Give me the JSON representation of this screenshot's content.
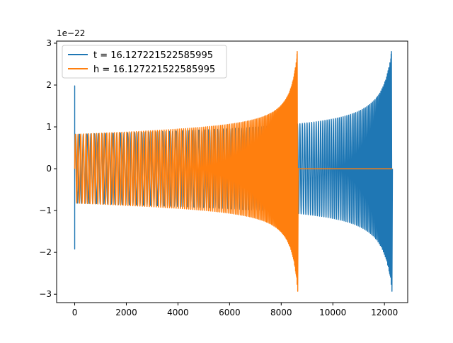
{
  "chart_data": {
    "type": "line",
    "title": "",
    "xlabel": "",
    "ylabel": "",
    "y_offset_label": "1e−22",
    "xlim": [
      -700,
      12900
    ],
    "ylim": [
      -3.2,
      3.05
    ],
    "x_ticks": [
      0,
      2000,
      4000,
      6000,
      8000,
      10000,
      12000
    ],
    "y_ticks": [
      -3,
      -2,
      -1,
      0,
      1,
      2,
      3
    ],
    "grid": false,
    "legend_position": "top-left",
    "series": [
      {
        "name": "t = 16.127221522585995",
        "color": "#1f77b4",
        "x_start": 0,
        "x_end": 12300,
        "envelope_start": 0.8,
        "envelope_end": 0.95,
        "merger_x": 12270,
        "peak_max": 2.8,
        "peak_min": -2.93,
        "initial_spike_max": 1.98,
        "initial_spike_min": -1.92,
        "post_merger_value": 0
      },
      {
        "name": "h = 16.127221522585995",
        "color": "#ff7f0e",
        "x_start": 0,
        "x_end": 8620,
        "envelope_start": 0.8,
        "envelope_end": 0.95,
        "merger_x": 8620,
        "peak_max": 2.8,
        "peak_min": -2.93,
        "flat_after_merger_until": 12300,
        "post_merger_value": 0
      }
    ]
  }
}
